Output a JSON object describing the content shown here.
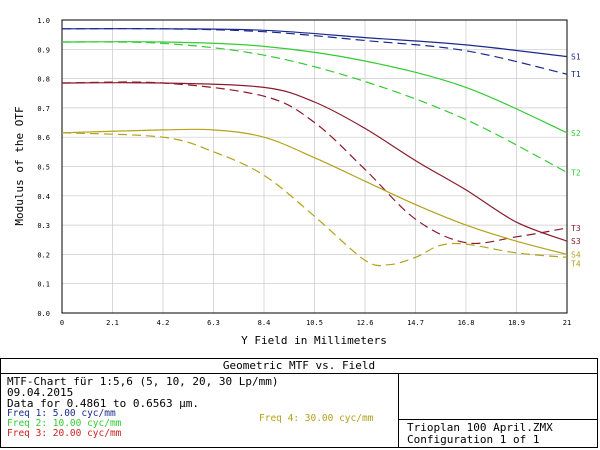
{
  "chart_data": {
    "type": "line",
    "ylabel": "Modulus of the OTF",
    "xlabel": "Y Field in Millimeters",
    "xlim": [
      0,
      21
    ],
    "ylim": [
      0,
      1
    ],
    "x_ticks": [
      "0",
      "2.1",
      "4.2",
      "6.3",
      "8.4",
      "10.5",
      "12.6",
      "14.7",
      "16.8",
      "18.9",
      "21"
    ],
    "y_ticks": [
      "0.0",
      "0.1",
      "0.2",
      "0.3",
      "0.4",
      "0.5",
      "0.6",
      "0.7",
      "0.8",
      "0.9",
      "1.0"
    ],
    "grid": true,
    "series": [
      {
        "name": "S1",
        "color": "#1a2a8c",
        "dash": false,
        "x": [
          0,
          4.2,
          8.4,
          12.6,
          16.8,
          21
        ],
        "y": [
          0.97,
          0.97,
          0.965,
          0.94,
          0.915,
          0.875
        ]
      },
      {
        "name": "T1",
        "color": "#1a2a8c",
        "dash": true,
        "x": [
          0,
          4.2,
          8.4,
          12.6,
          16.8,
          21
        ],
        "y": [
          0.97,
          0.97,
          0.96,
          0.93,
          0.895,
          0.815
        ]
      },
      {
        "name": "S2",
        "color": "#33cc33",
        "dash": false,
        "x": [
          0,
          4.2,
          8.4,
          12.6,
          16.8,
          21
        ],
        "y": [
          0.925,
          0.925,
          0.91,
          0.86,
          0.77,
          0.615
        ]
      },
      {
        "name": "T2",
        "color": "#33cc33",
        "dash": true,
        "x": [
          0,
          4.2,
          8.4,
          12.6,
          16.8,
          21
        ],
        "y": [
          0.925,
          0.92,
          0.88,
          0.79,
          0.66,
          0.48
        ]
      },
      {
        "name": "S3",
        "color": "#8b1a2a",
        "dash": false,
        "x": [
          0,
          4.2,
          8.4,
          10.5,
          12.6,
          14.7,
          16.8,
          18.9,
          21
        ],
        "y": [
          0.785,
          0.785,
          0.77,
          0.72,
          0.63,
          0.52,
          0.42,
          0.31,
          0.245
        ]
      },
      {
        "name": "T3",
        "color": "#8b1a2a",
        "dash": true,
        "x": [
          0,
          4.2,
          8.4,
          10.5,
          12.6,
          14.7,
          16.8,
          18.9,
          21
        ],
        "y": [
          0.785,
          0.785,
          0.74,
          0.65,
          0.49,
          0.32,
          0.24,
          0.26,
          0.29
        ]
      },
      {
        "name": "S4",
        "color": "#b3a21a",
        "dash": false,
        "x": [
          0,
          4.2,
          6.3,
          8.4,
          10.5,
          12.6,
          14.7,
          16.8,
          18.9,
          21
        ],
        "y": [
          0.615,
          0.625,
          0.625,
          0.6,
          0.53,
          0.45,
          0.37,
          0.3,
          0.245,
          0.2
        ]
      },
      {
        "name": "T4",
        "color": "#b3a21a",
        "dash": true,
        "x": [
          0,
          4.2,
          6.3,
          8.4,
          10.5,
          12.6,
          13.6,
          14.7,
          15.7,
          16.8,
          18.9,
          21
        ],
        "y": [
          0.615,
          0.6,
          0.55,
          0.47,
          0.33,
          0.18,
          0.165,
          0.19,
          0.23,
          0.235,
          0.205,
          0.19
        ]
      }
    ]
  },
  "panel": {
    "title": "Geometric MTF vs. Field",
    "line1": "MTF-Chart für 1:5,6 (5, 10, 20, 30 Lp/mm)",
    "line2": "09.04.2015",
    "line3": "Data for 0.4861 to 0.6563 µm.",
    "freqs": [
      {
        "label": "Freq 1:   5.00 cyc/mm",
        "color": "#1a2a8c"
      },
      {
        "label": "Freq 2:  10.00 cyc/mm",
        "color": "#33cc33"
      },
      {
        "label": "Freq 3:  20.00 cyc/mm",
        "color": "#cc2222"
      }
    ],
    "freq4": {
      "label": "Freq 4:  30.00 cyc/mm",
      "color": "#b3a21a"
    },
    "file": "Trioplan 100 April.ZMX",
    "config": "Configuration 1 of 1"
  }
}
